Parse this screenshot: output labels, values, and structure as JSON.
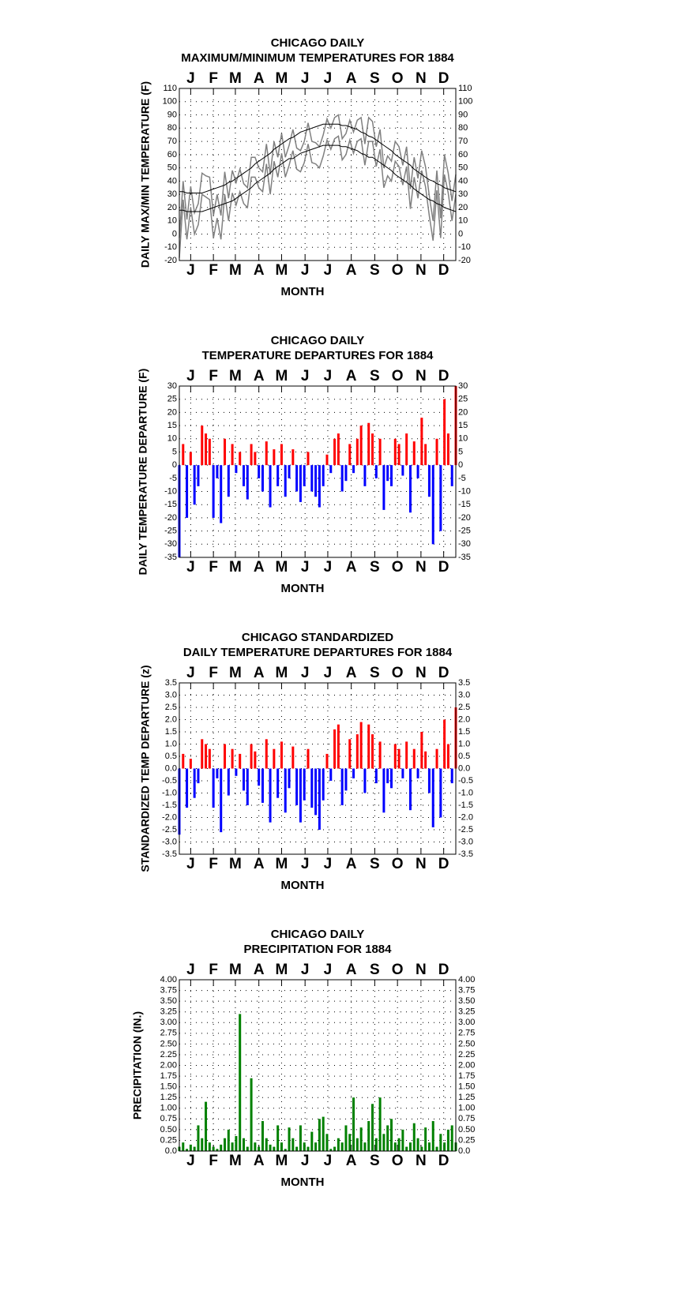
{
  "chart_data": [
    {
      "type": "line",
      "title": [
        "CHICAGO DAILY",
        "MAXIMUM/MINIMUM TEMPERATURES FOR 1884"
      ],
      "xlabel": "MONTH",
      "ylabel": "DAILY MAX/MIN TEMPERATURE (F)",
      "xlim": [
        1,
        366
      ],
      "xticks": [
        {
          "value": 16,
          "label": "J"
        },
        {
          "value": 46,
          "label": "F"
        },
        {
          "value": 75,
          "label": "M"
        },
        {
          "value": 106,
          "label": "A"
        },
        {
          "value": 136,
          "label": "M"
        },
        {
          "value": 167,
          "label": "J"
        },
        {
          "value": 197,
          "label": "J"
        },
        {
          "value": 228,
          "label": "A"
        },
        {
          "value": 259,
          "label": "S"
        },
        {
          "value": 289,
          "label": "O"
        },
        {
          "value": 320,
          "label": "N"
        },
        {
          "value": 350,
          "label": "D"
        }
      ],
      "ylim": [
        -20,
        110
      ],
      "yticks": [
        -20,
        -10,
        0,
        10,
        20,
        30,
        40,
        50,
        60,
        70,
        80,
        90,
        100,
        110
      ],
      "grid": true,
      "x": [
        1,
        6,
        11,
        16,
        21,
        26,
        31,
        36,
        41,
        46,
        51,
        56,
        61,
        66,
        71,
        76,
        81,
        86,
        91,
        96,
        101,
        106,
        111,
        116,
        121,
        126,
        131,
        136,
        141,
        146,
        151,
        156,
        161,
        166,
        171,
        176,
        181,
        186,
        191,
        196,
        201,
        206,
        211,
        216,
        221,
        226,
        231,
        236,
        241,
        246,
        251,
        256,
        261,
        266,
        271,
        276,
        281,
        286,
        291,
        296,
        301,
        306,
        311,
        316,
        321,
        326,
        331,
        336,
        341,
        346,
        351,
        356,
        361,
        366
      ],
      "series": [
        {
          "color": "#808080",
          "values": [
            -3,
            40,
            11,
            36,
            16,
            23,
            46,
            44,
            43,
            14,
            30,
            14,
            47,
            27,
            48,
            39,
            49,
            38,
            35,
            58,
            58,
            50,
            47,
            68,
            45,
            70,
            58,
            76,
            58,
            67,
            79,
            65,
            63,
            70,
            84,
            70,
            69,
            66,
            75,
            87,
            80,
            88,
            90,
            72,
            76,
            86,
            77,
            86,
            88,
            68,
            88,
            85,
            66,
            79,
            50,
            59,
            55,
            70,
            66,
            52,
            66,
            34,
            58,
            42,
            63,
            51,
            29,
            10,
            48,
            12,
            60,
            46,
            25,
            45
          ]
        },
        {
          "color": "#808080",
          "values": [
            -18,
            26,
            -4,
            20,
            0,
            7,
            30,
            28,
            26,
            -3,
            12,
            -4,
            30,
            10,
            31,
            22,
            32,
            23,
            20,
            43,
            43,
            35,
            32,
            53,
            30,
            55,
            43,
            61,
            43,
            52,
            63,
            49,
            47,
            54,
            68,
            54,
            53,
            50,
            59,
            71,
            64,
            72,
            74,
            56,
            60,
            71,
            61,
            70,
            72,
            52,
            70,
            70,
            51,
            64,
            35,
            44,
            40,
            55,
            51,
            37,
            51,
            19,
            43,
            27,
            48,
            36,
            14,
            -5,
            33,
            -3,
            45,
            31,
            10,
            30
          ]
        },
        {
          "color": "#000000",
          "values": [
            32,
            32,
            31,
            31,
            31,
            31,
            31,
            32,
            33,
            34,
            35,
            36,
            37,
            39,
            40,
            42,
            44,
            46,
            48,
            50,
            53,
            55,
            57,
            59,
            61,
            64,
            66,
            68,
            70,
            72,
            73,
            75,
            77,
            78,
            79,
            80,
            81,
            82,
            83,
            83,
            83,
            83,
            83,
            82,
            82,
            81,
            80,
            79,
            77,
            76,
            74,
            73,
            71,
            69,
            67,
            65,
            63,
            60,
            58,
            56,
            54,
            52,
            49,
            47,
            45,
            43,
            41,
            40,
            38,
            37,
            35,
            34,
            33,
            32
          ]
        },
        {
          "color": "#000000",
          "values": [
            18,
            18,
            17,
            17,
            17,
            17,
            17,
            18,
            19,
            20,
            21,
            22,
            23,
            24,
            25,
            27,
            29,
            31,
            33,
            35,
            38,
            40,
            42,
            44,
            46,
            49,
            51,
            53,
            55,
            57,
            57,
            59,
            61,
            62,
            63,
            64,
            65,
            66,
            67,
            67,
            67,
            67,
            67,
            66,
            66,
            65,
            64,
            63,
            61,
            60,
            58,
            58,
            56,
            54,
            52,
            50,
            48,
            45,
            43,
            41,
            39,
            37,
            34,
            32,
            30,
            28,
            26,
            25,
            23,
            22,
            20,
            19,
            18,
            17
          ]
        }
      ]
    },
    {
      "type": "bar",
      "title": [
        "CHICAGO DAILY",
        "TEMPERATURE DEPARTURES FOR 1884"
      ],
      "xlabel": "MONTH",
      "ylabel": "DAILY TEMPERATURE DEPARTURE (F)",
      "xlim": [
        1,
        366
      ],
      "xticks": [
        {
          "value": 16,
          "label": "J"
        },
        {
          "value": 46,
          "label": "F"
        },
        {
          "value": 75,
          "label": "M"
        },
        {
          "value": 106,
          "label": "A"
        },
        {
          "value": 136,
          "label": "M"
        },
        {
          "value": 167,
          "label": "J"
        },
        {
          "value": 197,
          "label": "J"
        },
        {
          "value": 228,
          "label": "A"
        },
        {
          "value": 259,
          "label": "S"
        },
        {
          "value": 289,
          "label": "O"
        },
        {
          "value": 320,
          "label": "N"
        },
        {
          "value": 350,
          "label": "D"
        }
      ],
      "ylim": [
        -35,
        30
      ],
      "yticks": [
        -35,
        -30,
        -25,
        -20,
        -15,
        -10,
        -5,
        0,
        5,
        10,
        15,
        20,
        25,
        30
      ],
      "grid": true,
      "pos_color": "#ff0000",
      "neg_color": "#0000ff",
      "x": [
        1,
        6,
        11,
        16,
        21,
        26,
        31,
        36,
        41,
        46,
        51,
        56,
        61,
        66,
        71,
        76,
        81,
        86,
        91,
        96,
        101,
        106,
        111,
        116,
        121,
        126,
        131,
        136,
        141,
        146,
        151,
        156,
        161,
        166,
        171,
        176,
        181,
        186,
        191,
        196,
        201,
        206,
        211,
        216,
        221,
        226,
        231,
        236,
        241,
        246,
        251,
        256,
        261,
        266,
        271,
        276,
        281,
        286,
        291,
        296,
        301,
        306,
        311,
        316,
        321,
        326,
        331,
        336,
        341,
        346,
        351,
        356,
        361,
        366
      ],
      "values": [
        -35,
        8,
        -20,
        5,
        -15,
        -8,
        15,
        12,
        10,
        -20,
        -5,
        -22,
        10,
        -12,
        8,
        -3,
        5,
        -8,
        -13,
        8,
        5,
        -5,
        -10,
        9,
        -16,
        6,
        -8,
        8,
        -12,
        -5,
        6,
        -10,
        -14,
        -8,
        5,
        -10,
        -12,
        -16,
        -8,
        4,
        -3,
        10,
        12,
        -10,
        -6,
        8,
        -3,
        10,
        15,
        -8,
        16,
        12,
        -5,
        10,
        -17,
        -6,
        -8,
        10,
        8,
        -4,
        12,
        -18,
        9,
        -5,
        18,
        8,
        -12,
        -30,
        10,
        -25,
        25,
        12,
        -8,
        30
      ]
    },
    {
      "type": "bar",
      "title": [
        "CHICAGO STANDARDIZED",
        "DAILY TEMPERATURE DEPARTURES FOR 1884"
      ],
      "xlabel": "MONTH",
      "ylabel": "STANDARDIZED TEMP DEPARTURE (z)",
      "xlim": [
        1,
        366
      ],
      "xticks": [
        {
          "value": 16,
          "label": "J"
        },
        {
          "value": 46,
          "label": "F"
        },
        {
          "value": 75,
          "label": "M"
        },
        {
          "value": 106,
          "label": "A"
        },
        {
          "value": 136,
          "label": "M"
        },
        {
          "value": 167,
          "label": "J"
        },
        {
          "value": 197,
          "label": "J"
        },
        {
          "value": 228,
          "label": "A"
        },
        {
          "value": 259,
          "label": "S"
        },
        {
          "value": 289,
          "label": "O"
        },
        {
          "value": 320,
          "label": "N"
        },
        {
          "value": 350,
          "label": "D"
        }
      ],
      "ylim": [
        -3.5,
        3.5
      ],
      "yticks": [
        -3.5,
        {
          "value": -3,
          "label": "-3.0"
        },
        -2.5,
        {
          "value": -2,
          "label": "-2.0"
        },
        -1.5,
        {
          "value": -1,
          "label": "-1.0"
        },
        -0.5,
        {
          "value": 0,
          "label": "0.0"
        },
        0.5,
        {
          "value": 1,
          "label": "1.0"
        },
        1.5,
        {
          "value": 2,
          "label": "2.0"
        },
        2.5,
        {
          "value": 3,
          "label": "3.0"
        },
        3.5
      ],
      "grid": true,
      "pos_color": "#ff0000",
      "neg_color": "#0000ff",
      "x": [
        1,
        6,
        11,
        16,
        21,
        26,
        31,
        36,
        41,
        46,
        51,
        56,
        61,
        66,
        71,
        76,
        81,
        86,
        91,
        96,
        101,
        106,
        111,
        116,
        121,
        126,
        131,
        136,
        141,
        146,
        151,
        156,
        161,
        166,
        171,
        176,
        181,
        186,
        191,
        196,
        201,
        206,
        211,
        216,
        221,
        226,
        231,
        236,
        241,
        246,
        251,
        256,
        261,
        266,
        271,
        276,
        281,
        286,
        291,
        296,
        301,
        306,
        311,
        316,
        321,
        326,
        331,
        336,
        341,
        346,
        351,
        356,
        361,
        366
      ],
      "values": [
        -2.7,
        0.6,
        -1.6,
        0.4,
        -1.2,
        -0.6,
        1.2,
        1.0,
        0.8,
        -1.6,
        -0.4,
        -2.6,
        1.0,
        -1.1,
        0.8,
        -0.3,
        0.6,
        -0.9,
        -1.5,
        1.0,
        0.7,
        -0.7,
        -1.4,
        1.2,
        -2.2,
        0.8,
        -1.2,
        1.1,
        -1.8,
        -0.8,
        0.9,
        -1.5,
        -2.2,
        -1.3,
        0.8,
        -1.6,
        -1.9,
        -2.5,
        -1.3,
        0.6,
        -0.5,
        1.6,
        1.8,
        -1.5,
        -0.9,
        1.2,
        -0.4,
        1.4,
        1.9,
        -1.0,
        1.8,
        1.4,
        -0.6,
        1.1,
        -1.8,
        -0.6,
        -0.8,
        1.0,
        0.8,
        -0.4,
        1.1,
        -1.7,
        0.8,
        -0.4,
        1.5,
        0.7,
        -1.0,
        -2.4,
        0.8,
        -2.0,
        2.0,
        1.0,
        -0.6,
        2.5
      ]
    },
    {
      "type": "bar",
      "title": [
        "CHICAGO DAILY",
        "PRECIPITATION FOR 1884"
      ],
      "xlabel": "MONTH",
      "ylabel": "PRECIPITATION (IN.)",
      "xlim": [
        1,
        366
      ],
      "xticks": [
        {
          "value": 16,
          "label": "J"
        },
        {
          "value": 46,
          "label": "F"
        },
        {
          "value": 75,
          "label": "M"
        },
        {
          "value": 106,
          "label": "A"
        },
        {
          "value": 136,
          "label": "M"
        },
        {
          "value": 167,
          "label": "J"
        },
        {
          "value": 197,
          "label": "J"
        },
        {
          "value": 228,
          "label": "A"
        },
        {
          "value": 259,
          "label": "S"
        },
        {
          "value": 289,
          "label": "O"
        },
        {
          "value": 320,
          "label": "N"
        },
        {
          "value": 350,
          "label": "D"
        }
      ],
      "ylim": [
        0,
        4
      ],
      "yticks": [
        {
          "value": 0,
          "label": "0.0"
        },
        0.25,
        {
          "value": 0.5,
          "label": "0.50"
        },
        0.75,
        {
          "value": 1,
          "label": "1.00"
        },
        1.25,
        {
          "value": 1.5,
          "label": "1.50"
        },
        1.75,
        {
          "value": 2,
          "label": "2.00"
        },
        2.25,
        {
          "value": 2.5,
          "label": "2.50"
        },
        2.75,
        {
          "value": 3,
          "label": "3.00"
        },
        3.25,
        {
          "value": 3.5,
          "label": "3.50"
        },
        3.75,
        {
          "value": 4,
          "label": "4.00"
        }
      ],
      "grid": true,
      "pos_color": "#008000",
      "neg_color": "#008000",
      "x": [
        1,
        6,
        11,
        16,
        21,
        26,
        31,
        36,
        41,
        46,
        51,
        56,
        61,
        66,
        71,
        76,
        81,
        86,
        91,
        96,
        101,
        106,
        111,
        116,
        121,
        126,
        131,
        136,
        141,
        146,
        151,
        156,
        161,
        166,
        171,
        176,
        181,
        186,
        191,
        196,
        201,
        206,
        211,
        216,
        221,
        226,
        231,
        236,
        241,
        246,
        251,
        256,
        261,
        266,
        271,
        276,
        281,
        286,
        291,
        296,
        301,
        306,
        311,
        316,
        321,
        326,
        331,
        336,
        341,
        346,
        351,
        356,
        361,
        366
      ],
      "values": [
        0.1,
        0.2,
        0.05,
        0.15,
        0.1,
        0.6,
        0.3,
        1.15,
        0.2,
        0.1,
        0.05,
        0.15,
        0.3,
        0.5,
        0.2,
        0.35,
        3.2,
        0.3,
        0.1,
        1.7,
        0.2,
        0.1,
        0.7,
        0.3,
        0.15,
        0.1,
        0.6,
        0.2,
        0.05,
        0.55,
        0.3,
        0.1,
        0.6,
        0.2,
        0.1,
        0.45,
        0.2,
        0.75,
        0.8,
        0.4,
        0.05,
        0.1,
        0.3,
        0.2,
        0.6,
        0.4,
        1.25,
        0.3,
        0.55,
        0.2,
        0.7,
        1.1,
        0.3,
        1.25,
        0.4,
        0.6,
        0.75,
        0.2,
        0.3,
        0.5,
        0.1,
        0.2,
        0.65,
        0.3,
        0.1,
        0.55,
        0.2,
        0.7,
        0.1,
        0.4,
        0.2,
        0.5,
        0.6,
        0.2
      ]
    }
  ]
}
